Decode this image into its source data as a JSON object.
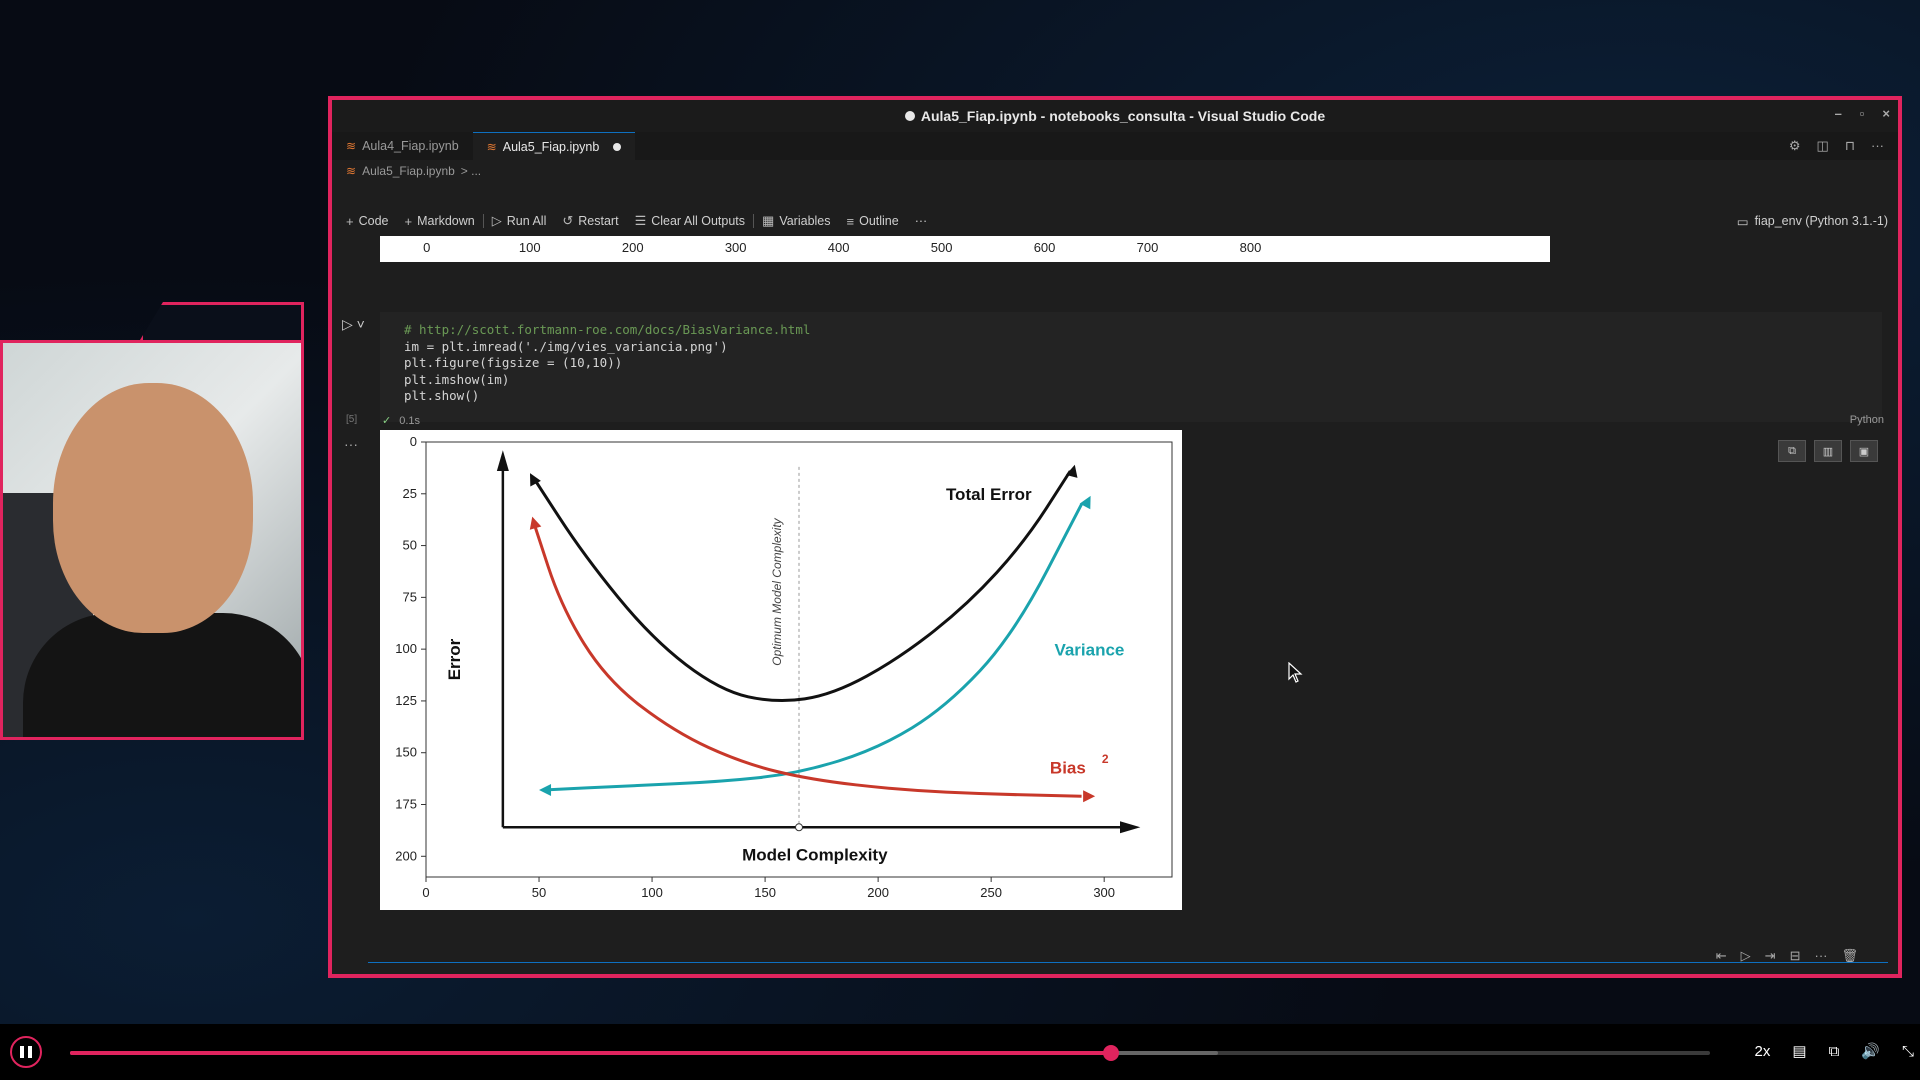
{
  "window": {
    "title": "Aula5_Fiap.ipynb - notebooks_consulta - Visual Studio Code",
    "controls": [
      "–",
      "▫",
      "×"
    ]
  },
  "tabs": [
    {
      "label": "Aula4_Fiap.ipynb",
      "active": false
    },
    {
      "label": "Aula5_Fiap.ipynb",
      "active": true,
      "modified": true
    }
  ],
  "breadcrumb": {
    "file": "Aula5_Fiap.ipynb",
    "rest": "> ..."
  },
  "toolbar": {
    "code": "Code",
    "markdown": "Markdown",
    "run_all": "Run All",
    "restart": "Restart",
    "clear_outputs": "Clear All Outputs",
    "variables": "Variables",
    "outline": "Outline",
    "more": "···",
    "kernel": "fiap_env (Python 3.1.-1)"
  },
  "prev_output_axis": [
    "0",
    "100",
    "200",
    "300",
    "400",
    "500",
    "600",
    "700",
    "800"
  ],
  "cell": {
    "lines": [
      "# http://scott.fortmann-roe.com/docs/BiasVariance.html",
      "im = plt.imread('./img/vies_variancia.png')",
      "plt.figure(figsize = (10,10))",
      "plt.imshow(im)",
      "plt.show()"
    ],
    "exec_count": "[5]",
    "exec_time": "0.1s",
    "language": "Python"
  },
  "chart_data": {
    "type": "line",
    "xlabel": "Model Complexity",
    "ylabel": "Error",
    "annotation": "Optimum Model Complexity",
    "x_ticks": [
      "0",
      "50",
      "100",
      "150",
      "200",
      "250",
      "300"
    ],
    "y_ticks": [
      "0",
      "25",
      "50",
      "75",
      "100",
      "125",
      "150",
      "175",
      "200"
    ],
    "xlim": [
      0,
      330
    ],
    "ylim": [
      0,
      210
    ],
    "series": [
      {
        "name": "Total Error",
        "color": "#111111",
        "x": [
          48,
          70,
          100,
          130,
          155,
          180,
          210,
          240,
          265,
          285
        ],
        "y": [
          18,
          55,
          95,
          120,
          126,
          122,
          104,
          78,
          48,
          14
        ]
      },
      {
        "name": "Variance",
        "color": "#1aa3ad",
        "x": [
          52,
          90,
          130,
          165,
          200,
          230,
          260,
          290
        ],
        "y": [
          168,
          166,
          164,
          160,
          148,
          128,
          93,
          30
        ]
      },
      {
        "name": "Bias",
        "color": "#c8382a",
        "x": [
          48,
          60,
          80,
          110,
          140,
          170,
          210,
          250,
          290
        ],
        "y": [
          40,
          80,
          115,
          140,
          155,
          163,
          168,
          170,
          171
        ]
      }
    ]
  },
  "player": {
    "progress": 0.635,
    "buffered": 0.7,
    "speed": "2x"
  }
}
